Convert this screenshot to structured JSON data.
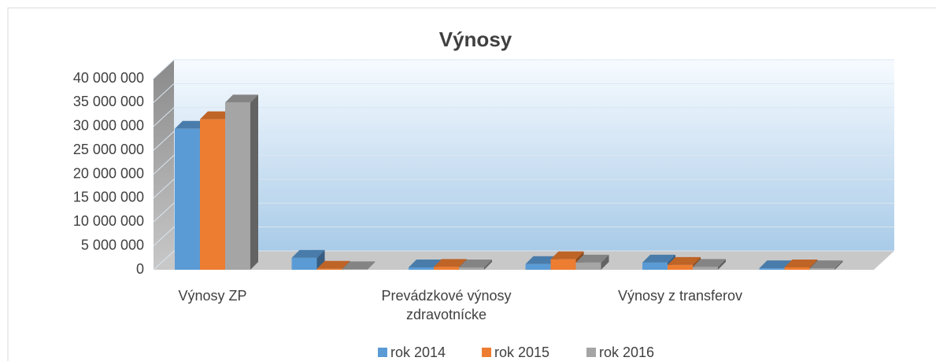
{
  "chart_data": {
    "type": "bar3d",
    "title": "Výnosy",
    "categories": [
      "Výnosy ZP",
      null,
      "Prevádzkové výnosy zdravotnícke",
      null,
      "Výnosy z transferov",
      null
    ],
    "series": [
      {
        "name": "rok 2014",
        "color": "#5b9bd5",
        "values": [
          29500000,
          2500000,
          500000,
          1200000,
          1500000,
          300000
        ]
      },
      {
        "name": "rok 2015",
        "color": "#ed7d31",
        "values": [
          31500000,
          200000,
          600000,
          2200000,
          1000000,
          500000
        ]
      },
      {
        "name": "rok 2016",
        "color": "#a5a5a5",
        "values": [
          35000000,
          100000,
          500000,
          1500000,
          600000,
          300000
        ]
      }
    ],
    "ylim": [
      0,
      40000000
    ],
    "yticks": [
      {
        "value": 0,
        "label": "0"
      },
      {
        "value": 5000000,
        "label": "5 000 000"
      },
      {
        "value": 10000000,
        "label": "10 000 000"
      },
      {
        "value": 15000000,
        "label": "15 000 000"
      },
      {
        "value": 20000000,
        "label": "20 000 000"
      },
      {
        "value": 25000000,
        "label": "25 000 000"
      },
      {
        "value": 30000000,
        "label": "30 000 000"
      },
      {
        "value": 35000000,
        "label": "35 000 000"
      },
      {
        "value": 40000000,
        "label": "40 000 000"
      }
    ],
    "grid": true,
    "legend": "bottom"
  }
}
